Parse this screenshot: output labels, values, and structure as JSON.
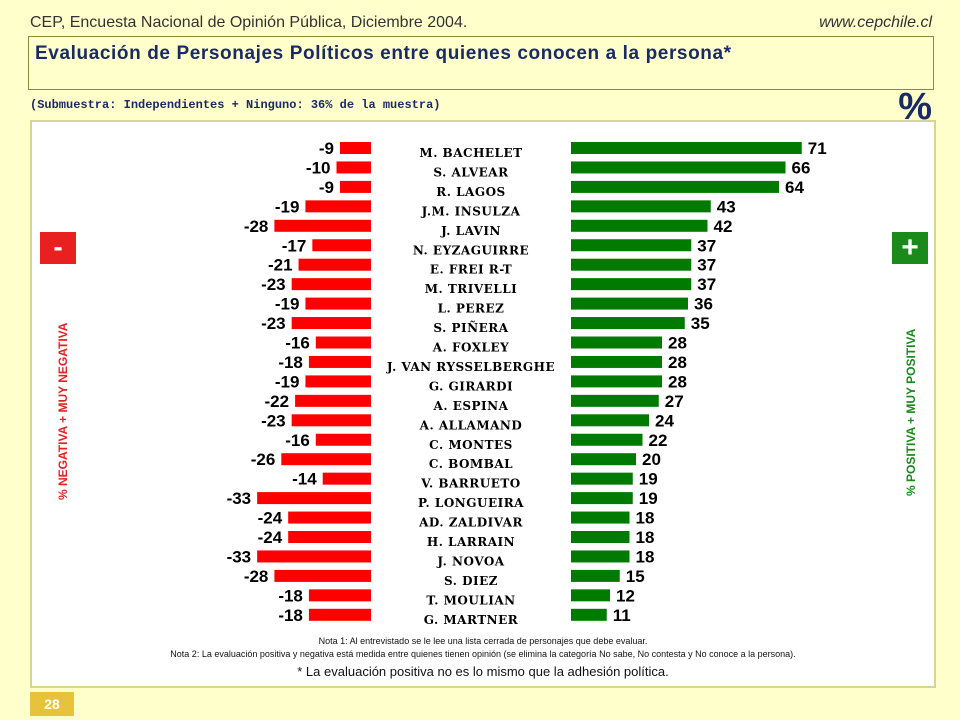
{
  "header": {
    "source": "CEP, Encuesta Nacional de Opinión Pública, Diciembre 2004.",
    "website": "www.cepchile.cl",
    "title": "Evaluación de Personajes Políticos entre quienes conocen a la persona*",
    "subtitle": "(Submuestra: Independientes + Ninguno: 36% de la muestra)",
    "unit_symbol": "%"
  },
  "legend": {
    "negative_symbol": "-",
    "positive_symbol": "+",
    "negative_label": "% NEGATIVA + MUY NEGATIVA",
    "positive_label": "% POSITIVA + MUY POSITIVA"
  },
  "colors": {
    "negative": "#ff0000",
    "positive": "#007a00"
  },
  "chart_data": {
    "type": "bar",
    "categories": [
      "M. BACHELET",
      "S. ALVEAR",
      "R. LAGOS",
      "J.M. INSULZA",
      "J. LAVIN",
      "N. EYZAGUIRRE",
      "E. FREI R-T",
      "M. TRIVELLI",
      "L. PEREZ",
      "S. PIÑERA",
      "A. FOXLEY",
      "J. VAN RYSSELBERGHE",
      "G. GIRARDI",
      "A. ESPINA",
      "A. ALLAMAND",
      "C. MONTES",
      "C. BOMBAL",
      "V. BARRUETO",
      "P. LONGUEIRA",
      "AD. ZALDIVAR",
      "H. LARRAIN",
      "J. NOVOA",
      "S. DIEZ",
      "T. MOULIAN",
      "G. MARTNER"
    ],
    "series": [
      {
        "name": "% NEGATIVA + MUY NEGATIVA",
        "values": [
          -9,
          -10,
          -9,
          -19,
          -28,
          -17,
          -21,
          -23,
          -19,
          -23,
          -16,
          -18,
          -19,
          -22,
          -23,
          -16,
          -26,
          -14,
          -33,
          -24,
          -24,
          -33,
          -28,
          -18,
          -18
        ]
      },
      {
        "name": "% POSITIVA + MUY POSITIVA",
        "values": [
          71,
          66,
          64,
          43,
          42,
          37,
          37,
          37,
          36,
          35,
          28,
          28,
          28,
          27,
          24,
          22,
          20,
          19,
          19,
          18,
          18,
          18,
          15,
          12,
          11
        ]
      }
    ]
  },
  "notes": {
    "note1": "Nota 1: Al entrevistado se le lee una lista cerrada de personajes que debe evaluar.",
    "note2": "Nota 2: La evaluación positiva y negativa está medida entre quienes tienen opinión (se elimina la categoría No sabe, No contesta y No conoce a la persona).",
    "footnote": "* La evaluación positiva no es lo mismo que la adhesión política."
  },
  "page_number": "28"
}
